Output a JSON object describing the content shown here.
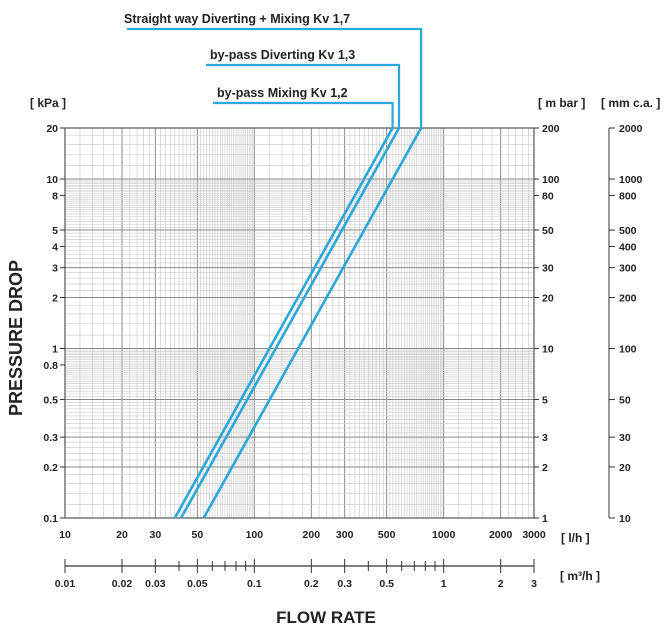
{
  "chart_data": {
    "type": "line",
    "x_scale": "log",
    "y_scale": "log",
    "xlim": [
      10,
      3000
    ],
    "ylim": [
      0.1,
      20
    ],
    "grid": true,
    "xlabel": "FLOW RATE",
    "ylabel": "PRESSURE DROP",
    "left_axis_unit": "[ kPa ]",
    "right_axis_units": [
      "[ m bar ]",
      "[ mm c.a. ]"
    ],
    "bottom_axis_unit": "[ l/h ]",
    "secondary_bottom_axis_unit": "[ m³/h ]",
    "x_ticks": [
      "10",
      "20",
      "30",
      "50",
      "100",
      "200",
      "300",
      "500",
      "1000",
      "2000",
      "3000"
    ],
    "x2_ticks": [
      "0.01",
      "0.02",
      "0.03",
      "0.05",
      "0.1",
      "0.2",
      "0.3",
      "0.5",
      "1",
      "2",
      "3"
    ],
    "y_ticks": [
      "0.1",
      "0.2",
      "0.3",
      "0.5",
      "0.8",
      "1",
      "2",
      "3",
      "4",
      "5",
      "8",
      "10",
      "20"
    ],
    "ymbar_ticks": [
      "1",
      "2",
      "3",
      "5",
      "10",
      "20",
      "30",
      "50",
      "80",
      "100",
      "200"
    ],
    "ymm_ticks": [
      "10",
      "20",
      "30",
      "50",
      "100",
      "200",
      "300",
      "400",
      "500",
      "800",
      "1000",
      "2000"
    ],
    "series": [
      {
        "name": "Straight way Diverting + Mixing Kv 1,7",
        "kv": 1.7,
        "x": [
          54,
          760
        ],
        "y": [
          0.1,
          20
        ]
      },
      {
        "name": "by-pass Diverting Kv 1,3",
        "kv": 1.3,
        "x": [
          41,
          581
        ],
        "y": [
          0.1,
          20
        ]
      },
      {
        "name": "by-pass Mixing Kv 1,2",
        "kv": 1.2,
        "x": [
          38,
          537
        ],
        "y": [
          0.1,
          20
        ]
      }
    ],
    "line_color": "#29a8d9"
  }
}
